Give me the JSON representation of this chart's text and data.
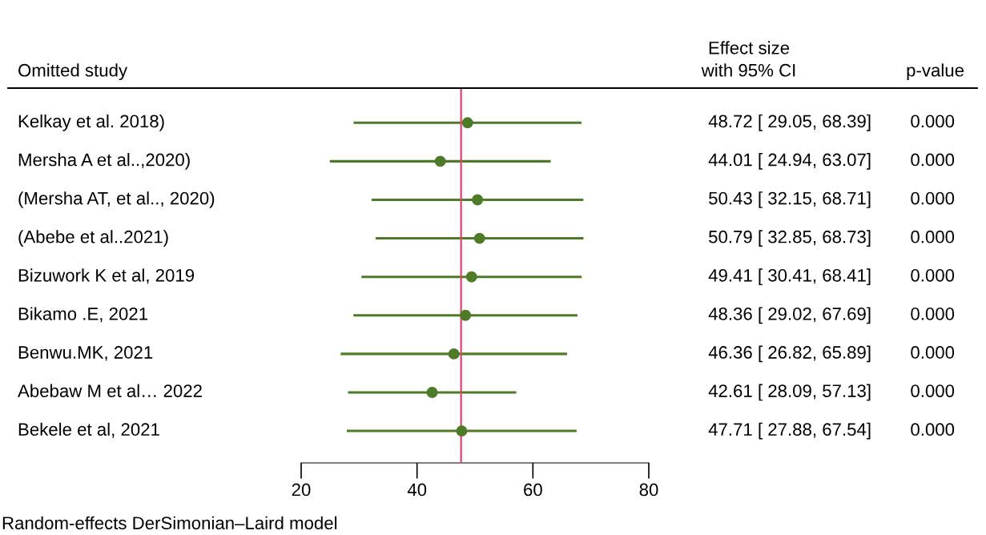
{
  "chart_data": {
    "type": "scatter",
    "orientation": "horizontal",
    "marker": "circle",
    "color": "#4f7a28",
    "categories": [
      "Kelkay et al. 2018)",
      "Mersha A et al..,2020)",
      "(Mersha AT, et al.., 2020)",
      "(Abebe et al..2021)",
      "Bizuwork K et al, 2019",
      "Bikamo .E, 2021",
      "Benwu.MK, 2021",
      "Abebaw M et al… 2022",
      "Bekele et al, 2021"
    ],
    "values": [
      48.72,
      44.01,
      50.43,
      50.79,
      49.41,
      48.36,
      46.36,
      42.61,
      47.71
    ],
    "errors": [
      [
        29.05,
        68.39
      ],
      [
        24.94,
        63.07
      ],
      [
        32.15,
        68.71
      ],
      [
        32.85,
        68.73
      ],
      [
        30.41,
        68.41
      ],
      [
        29.02,
        67.69
      ],
      [
        26.82,
        65.89
      ],
      [
        28.09,
        57.13
      ],
      [
        27.88,
        67.54
      ]
    ],
    "value_labels": [
      "48.72 [ 29.05, 68.39]",
      "44.01 [ 24.94, 63.07]",
      "50.43 [ 32.15, 68.71]",
      "50.79 [ 32.85, 68.73]",
      "49.41 [ 30.41, 68.41]",
      "48.36 [ 29.02, 67.69]",
      "46.36 [ 26.82, 65.89]",
      "42.61 [ 28.09, 57.13]",
      "47.71 [ 27.88, 67.54]"
    ],
    "xlim": [
      20,
      80
    ],
    "xticks": [
      20,
      40,
      60,
      80
    ],
    "ref_lines": [
      {
        "axis": "x",
        "value": 47.6,
        "color": "#e0426e"
      }
    ],
    "annotations": [
      "Omitted study",
      "Effect size\nwith 95% CI",
      "p-value",
      "0.000",
      "0.000",
      "0.000",
      "0.000",
      "0.000",
      "0.000",
      "0.000",
      "0.000",
      "0.000",
      "Random-effects DerSimonian–Laird model"
    ]
  }
}
